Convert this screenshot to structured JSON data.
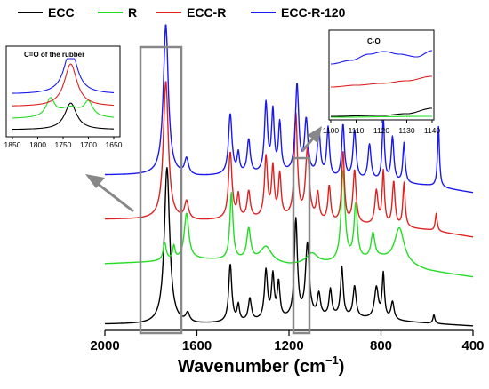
{
  "chart_data": {
    "type": "line",
    "xlabel": "Wavenumber (cm",
    "xlabel_sup": "−1",
    "xlabel_close": ")",
    "ylabel": "",
    "xlim": [
      2000,
      400
    ],
    "x_reversed": true,
    "x_ticks": [
      2000,
      1600,
      1200,
      800,
      400
    ],
    "grid": false,
    "legend_position": "top",
    "series": [
      {
        "name": "ECC",
        "color": "#000000",
        "offset": 0,
        "peaks": [
          [
            1730,
            14,
            176
          ],
          [
            1640,
            10,
            10
          ],
          [
            1455,
            8,
            65
          ],
          [
            1420,
            6,
            18
          ],
          [
            1370,
            8,
            25
          ],
          [
            1300,
            8,
            55
          ],
          [
            1270,
            7,
            48
          ],
          [
            1245,
            7,
            40
          ],
          [
            1170,
            8,
            110
          ],
          [
            1120,
            10,
            82
          ],
          [
            1070,
            8,
            25
          ],
          [
            1020,
            7,
            30
          ],
          [
            970,
            7,
            55
          ],
          [
            915,
            8,
            35
          ],
          [
            820,
            10,
            35
          ],
          [
            790,
            6,
            50
          ],
          [
            750,
            8,
            20
          ],
          [
            570,
            5,
            10
          ]
        ],
        "baseline": [
          [
            2000,
            0
          ],
          [
            1800,
            0
          ],
          [
            1600,
            0
          ],
          [
            1400,
            2
          ],
          [
            1200,
            5
          ],
          [
            1000,
            8
          ],
          [
            800,
            5
          ],
          [
            600,
            1
          ],
          [
            400,
            -2
          ]
        ]
      },
      {
        "name": "R",
        "color": "#22dd22",
        "offset": 68,
        "peaks": [
          [
            1740,
            8,
            20
          ],
          [
            1700,
            6,
            15
          ],
          [
            1645,
            12,
            52
          ],
          [
            1450,
            8,
            75
          ],
          [
            1375,
            10,
            35
          ],
          [
            1300,
            30,
            18
          ],
          [
            1100,
            30,
            12
          ],
          [
            965,
            10,
            102
          ],
          [
            910,
            9,
            62
          ],
          [
            835,
            10,
            28
          ],
          [
            720,
            25,
            40
          ]
        ],
        "baseline": [
          [
            2000,
            0
          ],
          [
            1800,
            2
          ],
          [
            1600,
            5
          ],
          [
            1400,
            3
          ],
          [
            1200,
            -2
          ],
          [
            1000,
            0
          ],
          [
            800,
            5
          ],
          [
            600,
            -8
          ],
          [
            400,
            -15
          ]
        ]
      },
      {
        "name": "ECC-R",
        "color": "#dd2222",
        "offset": 118,
        "peaks": [
          [
            1735,
            13,
            156
          ],
          [
            1645,
            10,
            20
          ],
          [
            1455,
            9,
            75
          ],
          [
            1420,
            6,
            25
          ],
          [
            1375,
            8,
            30
          ],
          [
            1300,
            8,
            68
          ],
          [
            1270,
            7,
            55
          ],
          [
            1240,
            7,
            48
          ],
          [
            1170,
            8,
            116
          ],
          [
            1120,
            10,
            78
          ],
          [
            1075,
            7,
            30
          ],
          [
            1025,
            7,
            40
          ],
          [
            965,
            7,
            80
          ],
          [
            915,
            8,
            60
          ],
          [
            820,
            8,
            38
          ],
          [
            790,
            6,
            60
          ],
          [
            745,
            7,
            50
          ],
          [
            700,
            6,
            50
          ],
          [
            560,
            5,
            20
          ]
        ],
        "baseline": [
          [
            2000,
            0
          ],
          [
            1800,
            0
          ],
          [
            1600,
            -2
          ],
          [
            1400,
            0
          ],
          [
            1200,
            0
          ],
          [
            1000,
            -5
          ],
          [
            800,
            -8
          ],
          [
            600,
            -12
          ],
          [
            400,
            -20
          ]
        ]
      },
      {
        "name": "ECC-R-120",
        "color": "#1a1aee",
        "offset": 168,
        "peaks": [
          [
            1735,
            13,
            170
          ],
          [
            1645,
            10,
            18
          ],
          [
            1455,
            9,
            68
          ],
          [
            1420,
            6,
            22
          ],
          [
            1375,
            8,
            38
          ],
          [
            1300,
            8,
            78
          ],
          [
            1270,
            7,
            68
          ],
          [
            1240,
            7,
            55
          ],
          [
            1165,
            9,
            100
          ],
          [
            1125,
            9,
            60
          ],
          [
            1070,
            8,
            50
          ],
          [
            1030,
            7,
            55
          ],
          [
            965,
            7,
            60
          ],
          [
            915,
            8,
            55
          ],
          [
            850,
            8,
            40
          ],
          [
            790,
            6,
            70
          ],
          [
            750,
            7,
            50
          ],
          [
            700,
            6,
            45
          ],
          [
            550,
            5,
            68
          ]
        ],
        "baseline": [
          [
            2000,
            0
          ],
          [
            1800,
            0
          ],
          [
            1600,
            -2
          ],
          [
            1400,
            0
          ],
          [
            1200,
            0
          ],
          [
            1000,
            -5
          ],
          [
            800,
            -8
          ],
          [
            600,
            -12
          ],
          [
            400,
            -20
          ]
        ]
      }
    ],
    "inset_left": {
      "title": "C=O of the rubber",
      "x_ticks": [
        1850,
        1800,
        1750,
        1700,
        1650
      ],
      "xlim": [
        1850,
        1650
      ]
    },
    "inset_right": {
      "title": "C-O",
      "x_ticks": [
        1100,
        1110,
        1120,
        1130,
        1140
      ],
      "xlim": [
        1100,
        1140
      ]
    }
  }
}
